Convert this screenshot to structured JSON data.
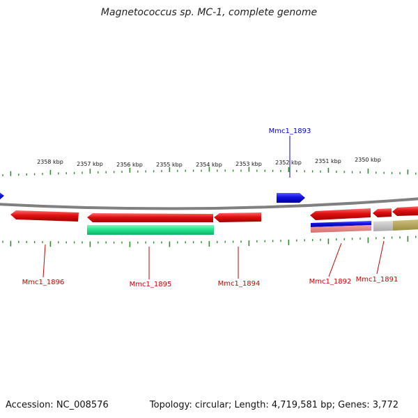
{
  "title": "Magnetococcus sp. MC-1, complete genome",
  "footer": {
    "accession": "Accession: NC_008576",
    "summary": "Topology: circular; Length: 4,719,581 bp; Genes: 3,772"
  },
  "kbp_labels": [
    "2358 kbp",
    "2357 kbp",
    "2356 kbp",
    "2355 kbp",
    "2354 kbp",
    "2353 kbp",
    "2352 kbp",
    "2351 kbp",
    "2350 kbp"
  ],
  "gene_labels": {
    "mmc1_1893": "Mmc1_1893",
    "mmc1_1896": "Mmc1_1896",
    "mmc1_1895": "Mmc1_1895",
    "mmc1_1894": "Mmc1_1894",
    "mmc1_1892": "Mmc1_1892",
    "mmc1_1891": "Mmc1_1891"
  },
  "colors": {
    "backbone": "#808080",
    "tick": "#2e8b2e",
    "gene_forward": "#1010e0",
    "gene_reverse": "#e01010",
    "gene_green": "#22e08a",
    "gene_grey": "#bbbbbb",
    "gene_olive": "#b5a55a",
    "label_blue": "#0000cc",
    "label_red": "#cc0000"
  }
}
